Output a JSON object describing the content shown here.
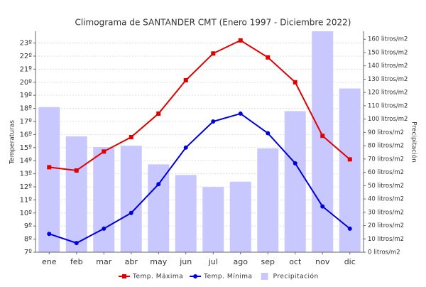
{
  "chart_data": {
    "type": "bar-line",
    "title": "Climograma de SANTANDER CMT (Enero 1997 - Diciembre 2022)",
    "ylabel": "Temperaturas",
    "y2label": "Precipitación",
    "categories": [
      "ene",
      "feb",
      "mar",
      "abr",
      "may",
      "jun",
      "jul",
      "ago",
      "sep",
      "oct",
      "nov",
      "dic"
    ],
    "series": [
      {
        "name": "Precipitación",
        "type": "bar",
        "axis": "y2",
        "color": "#c8c8ff",
        "values": [
          109,
          87,
          79,
          80,
          66,
          58,
          49,
          53,
          78,
          106,
          166,
          123
        ]
      },
      {
        "name": "Temp. Máxima",
        "type": "line",
        "marker": "square",
        "color": "#e00000",
        "values": [
          13.5,
          13.25,
          14.7,
          15.8,
          17.6,
          20.15,
          22.2,
          23.2,
          21.9,
          20.0,
          15.9,
          14.1
        ]
      },
      {
        "name": "Temp. Mínima",
        "type": "line",
        "marker": "circle",
        "color": "#0000dd",
        "values": [
          8.4,
          7.7,
          8.8,
          10.0,
          12.2,
          15.0,
          17.0,
          17.6,
          16.1,
          13.8,
          10.5,
          8.8
        ]
      }
    ],
    "legend_order": [
      1,
      2,
      0
    ],
    "ylim": [
      7,
      23.9
    ],
    "yticks": [
      {
        "value": 7,
        "label": "7º"
      },
      {
        "value": 8,
        "label": "8º"
      },
      {
        "value": 9,
        "label": "9º"
      },
      {
        "value": 10,
        "label": "10º"
      },
      {
        "value": 11,
        "label": "11º"
      },
      {
        "value": 12,
        "label": "12º"
      },
      {
        "value": 13,
        "label": "13º"
      },
      {
        "value": 14,
        "label": "14º"
      },
      {
        "value": 15,
        "label": "15º"
      },
      {
        "value": 16,
        "label": "16º"
      },
      {
        "value": 17,
        "label": "17º"
      },
      {
        "value": 18,
        "label": "18º"
      },
      {
        "value": 19,
        "label": "19º"
      },
      {
        "value": 20,
        "label": "20º"
      },
      {
        "value": 21,
        "label": "21º"
      },
      {
        "value": 22,
        "label": "22º"
      },
      {
        "value": 23,
        "label": "23º"
      }
    ],
    "y2lim": [
      0,
      166
    ],
    "y2ticks": [
      {
        "value": 0,
        "label": "0 litros/m2"
      },
      {
        "value": 10,
        "label": "10 litros/m2"
      },
      {
        "value": 20,
        "label": "20 litros/m2"
      },
      {
        "value": 30,
        "label": "30 litros/m2"
      },
      {
        "value": 40,
        "label": "40 litros/m2"
      },
      {
        "value": 50,
        "label": "50 litros/m2"
      },
      {
        "value": 60,
        "label": "60 litros/m2"
      },
      {
        "value": 70,
        "label": "70 litros/m2"
      },
      {
        "value": 80,
        "label": "80 litros/m2"
      },
      {
        "value": 90,
        "label": "90 litros/m2"
      },
      {
        "value": 100,
        "label": "100 litros/m2"
      },
      {
        "value": 110,
        "label": "110 litros/m2"
      },
      {
        "value": 120,
        "label": "120 litros/m2"
      },
      {
        "value": 130,
        "label": "130 litros/m2"
      },
      {
        "value": 140,
        "label": "140 litros/m2"
      },
      {
        "value": 150,
        "label": "150 litros/m2"
      },
      {
        "value": 160,
        "label": "160 litros/m2"
      }
    ],
    "grid": true
  }
}
